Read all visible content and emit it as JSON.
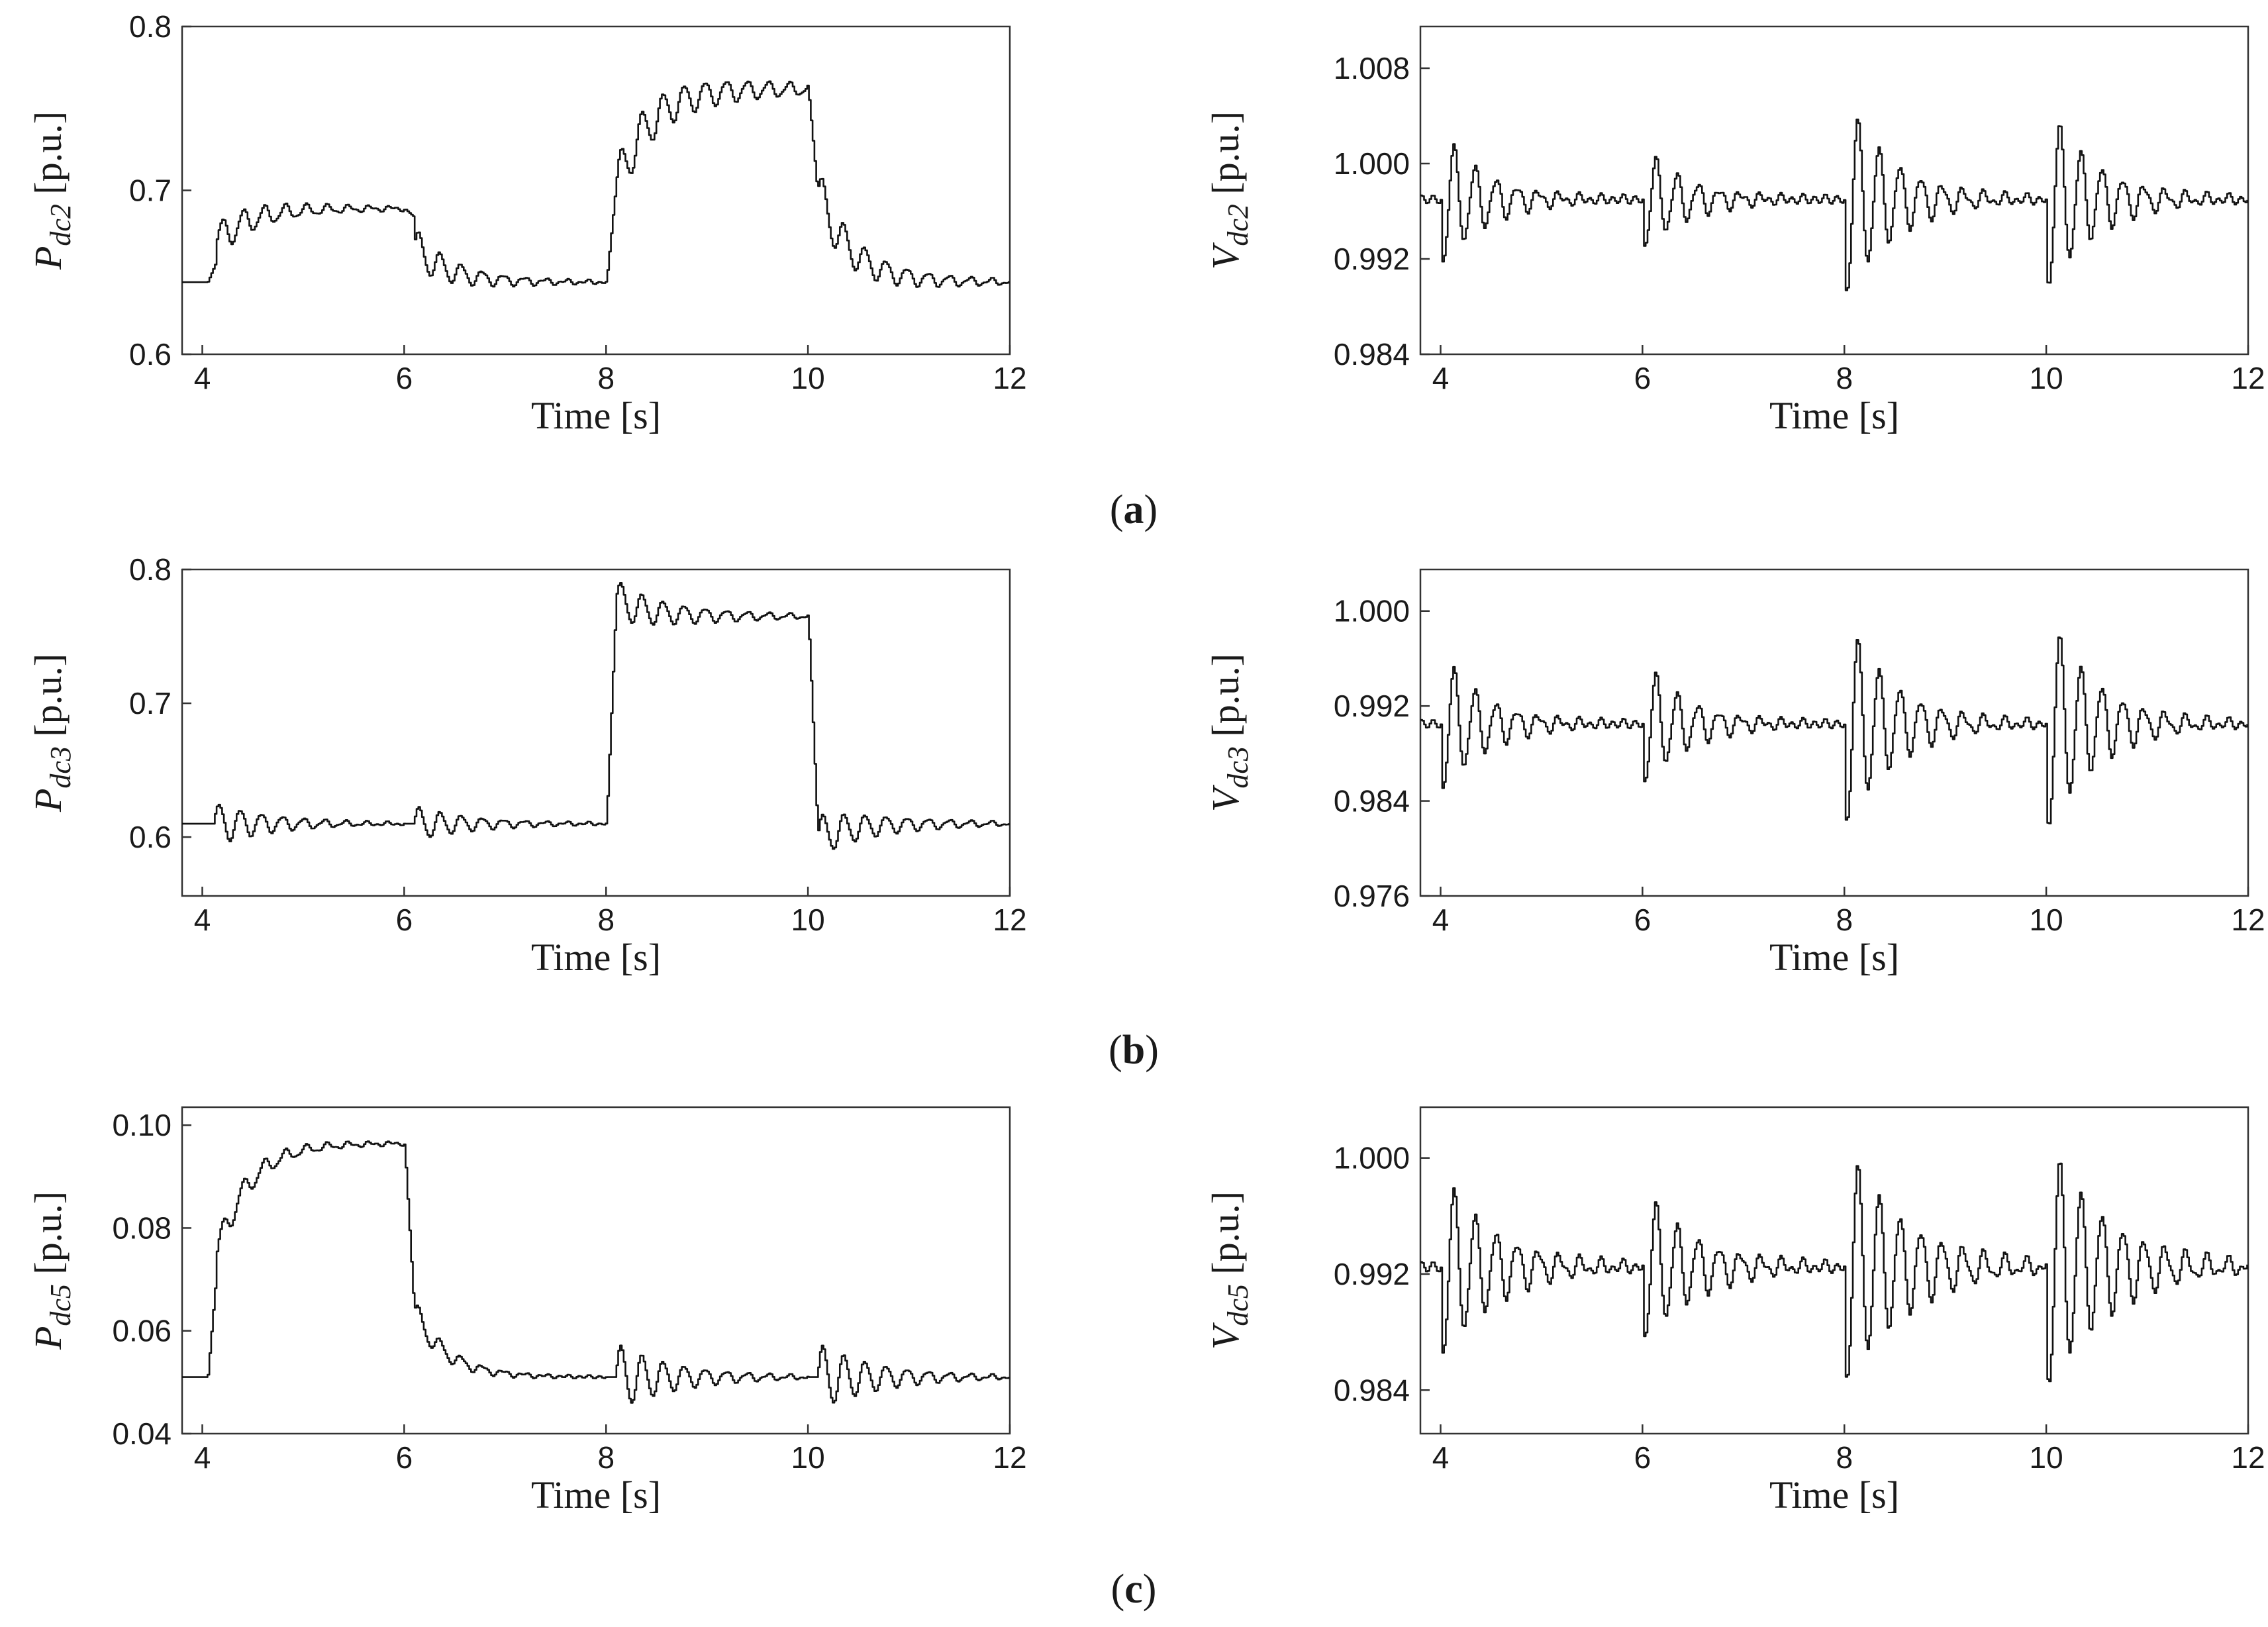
{
  "panel_labels": [
    {
      "open": "(",
      "letter": "a",
      "close": ")"
    },
    {
      "open": "(",
      "letter": "b",
      "close": ")"
    },
    {
      "open": "(",
      "letter": "c",
      "close": ")"
    }
  ],
  "chart_data": [
    {
      "id": "a-left",
      "type": "line",
      "row": 0,
      "col": 0,
      "xlabel": "Time [s]",
      "ylabel_symbol": "P",
      "ylabel_sub": "dc2",
      "ylabel_unit": " [p.u.]",
      "xlim": [
        3.8,
        12
      ],
      "ylim": [
        0.6,
        0.8
      ],
      "xticks": [
        4,
        6,
        8,
        10,
        12
      ],
      "xtick_labels": [
        "4",
        "6",
        "8",
        "10",
        "12"
      ],
      "yticks": [
        0.6,
        0.7,
        0.8
      ],
      "ytick_labels": [
        "0.6",
        "0.7",
        "0.8"
      ],
      "series": [
        {
          "name": "Pdc2",
          "segments": [
            {
              "t0": 3.8,
              "t1": 4.05,
              "level": 0.644
            },
            {
              "t0": 4.05,
              "t1": 6.0,
              "level": 0.689,
              "start": 0.657,
              "overshoot": 0.012,
              "osc_amp": 0.011,
              "decay": 1.3
            },
            {
              "t0": 6.0,
              "t1": 8.0,
              "level": 0.644,
              "start": 0.684,
              "overshoot": -0.018,
              "osc_amp": 0.012,
              "decay": 1.5
            },
            {
              "t0": 8.0,
              "t1": 10.0,
              "level": 0.762,
              "start": 0.7,
              "overshoot": 0.0,
              "osc_amp": 0.016,
              "decay": 0.8
            },
            {
              "t0": 10.0,
              "t1": 12.0,
              "level": 0.644,
              "start": 0.7,
              "overshoot": 0.0,
              "osc_amp": 0.015,
              "decay": 1.2
            }
          ]
        }
      ]
    },
    {
      "id": "a-right",
      "type": "line",
      "row": 0,
      "col": 1,
      "xlabel": "Time [s]",
      "ylabel_symbol": "V",
      "ylabel_sub": "dc2",
      "ylabel_unit": " [p.u.]",
      "xlim": [
        3.8,
        12
      ],
      "ylim": [
        0.984,
        1.0115
      ],
      "xticks": [
        4,
        6,
        8,
        10,
        12
      ],
      "xtick_labels": [
        "4",
        "6",
        "8",
        "10",
        "12"
      ],
      "yticks": [
        0.984,
        0.992,
        1.0,
        1.008
      ],
      "ytick_labels": [
        "0.984",
        "0.992",
        "1.000",
        "1.008"
      ],
      "series": [
        {
          "name": "Vdc2",
          "baseline": 0.997,
          "disturbances": [
            {
              "t": 4.0,
              "amp": 0.0058,
              "decay": 2.2
            },
            {
              "t": 6.0,
              "amp": 0.0045,
              "decay": 2.2
            },
            {
              "t": 8.0,
              "amp": 0.0085,
              "decay": 2.0
            },
            {
              "t": 10.0,
              "amp": 0.008,
              "decay": 2.0
            }
          ]
        }
      ]
    },
    {
      "id": "b-left",
      "type": "line",
      "row": 1,
      "col": 0,
      "xlabel": "Time [s]",
      "ylabel_symbol": "P",
      "ylabel_sub": "dc3",
      "ylabel_unit": " [p.u.]",
      "xlim": [
        3.8,
        12
      ],
      "ylim": [
        0.556,
        0.8
      ],
      "xticks": [
        4,
        6,
        8,
        10,
        12
      ],
      "xtick_labels": [
        "4",
        "6",
        "8",
        "10",
        "12"
      ],
      "yticks": [
        0.6,
        0.7,
        0.8
      ],
      "ytick_labels": [
        "0.6",
        "0.7",
        "0.8"
      ],
      "series": [
        {
          "name": "Pdc3",
          "segments": [
            {
              "t0": 3.8,
              "t1": 4.02,
              "level": 0.61
            },
            {
              "t0": 4.02,
              "t1": 6.0,
              "level": 0.61,
              "start": 0.61,
              "overshoot": 0.0,
              "osc_amp": 0.016,
              "decay": 1.6
            },
            {
              "t0": 6.0,
              "t1": 8.0,
              "level": 0.61,
              "start": 0.61,
              "overshoot": 0.0,
              "osc_amp": 0.013,
              "decay": 1.6
            },
            {
              "t0": 8.0,
              "t1": 10.0,
              "level": 0.765,
              "start": 0.765,
              "overshoot": 0.012,
              "osc_amp": 0.015,
              "decay": 1.2
            },
            {
              "t0": 10.0,
              "t1": 12.0,
              "level": 0.61,
              "start": 0.61,
              "overshoot": -0.01,
              "osc_amp": 0.016,
              "decay": 1.3
            }
          ]
        }
      ]
    },
    {
      "id": "b-right",
      "type": "line",
      "row": 1,
      "col": 1,
      "xlabel": "Time [s]",
      "ylabel_symbol": "V",
      "ylabel_sub": "dc3",
      "ylabel_unit": " [p.u.]",
      "xlim": [
        3.8,
        12
      ],
      "ylim": [
        0.976,
        1.0035
      ],
      "xticks": [
        4,
        6,
        8,
        10,
        12
      ],
      "xtick_labels": [
        "4",
        "6",
        "8",
        "10",
        "12"
      ],
      "yticks": [
        0.976,
        0.984,
        0.992,
        1.0
      ],
      "ytick_labels": [
        "0.976",
        "0.984",
        "0.992",
        "1.000"
      ],
      "series": [
        {
          "name": "Vdc3",
          "baseline": 0.9905,
          "disturbances": [
            {
              "t": 4.0,
              "amp": 0.006,
              "decay": 2.2
            },
            {
              "t": 6.0,
              "amp": 0.0055,
              "decay": 2.2
            },
            {
              "t": 8.0,
              "amp": 0.009,
              "decay": 2.0
            },
            {
              "t": 10.0,
              "amp": 0.0095,
              "decay": 2.0
            }
          ]
        }
      ]
    },
    {
      "id": "c-left",
      "type": "line",
      "row": 2,
      "col": 0,
      "xlabel": "Time [s]",
      "ylabel_symbol": "P",
      "ylabel_sub": "dc5",
      "ylabel_unit": " [p.u.]",
      "xlim": [
        3.8,
        12
      ],
      "ylim": [
        0.04,
        0.1035
      ],
      "xticks": [
        4,
        6,
        8,
        10,
        12
      ],
      "xtick_labels": [
        "4",
        "6",
        "8",
        "10",
        "12"
      ],
      "yticks": [
        0.04,
        0.06,
        0.08,
        0.1
      ],
      "ytick_labels": [
        "0.04",
        "0.06",
        "0.08",
        "0.10"
      ],
      "series": [
        {
          "name": "Pdc5",
          "segments": [
            {
              "t0": 3.8,
              "t1": 4.05,
              "level": 0.051
            },
            {
              "t0": 4.05,
              "t1": 6.0,
              "level": 0.0965,
              "start": 0.072,
              "overshoot": 0.003,
              "osc_amp": 0.003,
              "decay": 1.4
            },
            {
              "t0": 6.0,
              "t1": 8.0,
              "level": 0.051,
              "start": 0.066,
              "overshoot": -0.002,
              "osc_amp": 0.0025,
              "decay": 1.8
            },
            {
              "t0": 8.0,
              "t1": 10.0,
              "level": 0.051,
              "start": 0.051,
              "overshoot": 0.0,
              "osc_amp": 0.0065,
              "decay": 1.6
            },
            {
              "t0": 10.0,
              "t1": 12.0,
              "level": 0.051,
              "start": 0.051,
              "overshoot": 0.0,
              "osc_amp": 0.0065,
              "decay": 1.6
            }
          ]
        }
      ]
    },
    {
      "id": "c-right",
      "type": "line",
      "row": 2,
      "col": 1,
      "xlabel": "Time [s]",
      "ylabel_symbol": "V",
      "ylabel_sub": "dc5",
      "ylabel_unit": " [p.u.]",
      "xlim": [
        3.8,
        12
      ],
      "ylim": [
        0.981,
        1.0035
      ],
      "xticks": [
        4,
        6,
        8,
        10,
        12
      ],
      "xtick_labels": [
        "4",
        "6",
        "8",
        "10",
        "12"
      ],
      "yticks": [
        0.984,
        0.992,
        1.0
      ],
      "ytick_labels": [
        "0.984",
        "0.992",
        "1.000"
      ],
      "series": [
        {
          "name": "Vdc5",
          "baseline": 0.9925,
          "disturbances": [
            {
              "t": 4.0,
              "amp": 0.0065,
              "decay": 1.8
            },
            {
              "t": 6.0,
              "amp": 0.0055,
              "decay": 1.8
            },
            {
              "t": 8.0,
              "amp": 0.0085,
              "decay": 1.6
            },
            {
              "t": 10.0,
              "amp": 0.009,
              "decay": 1.6
            }
          ]
        }
      ]
    }
  ]
}
